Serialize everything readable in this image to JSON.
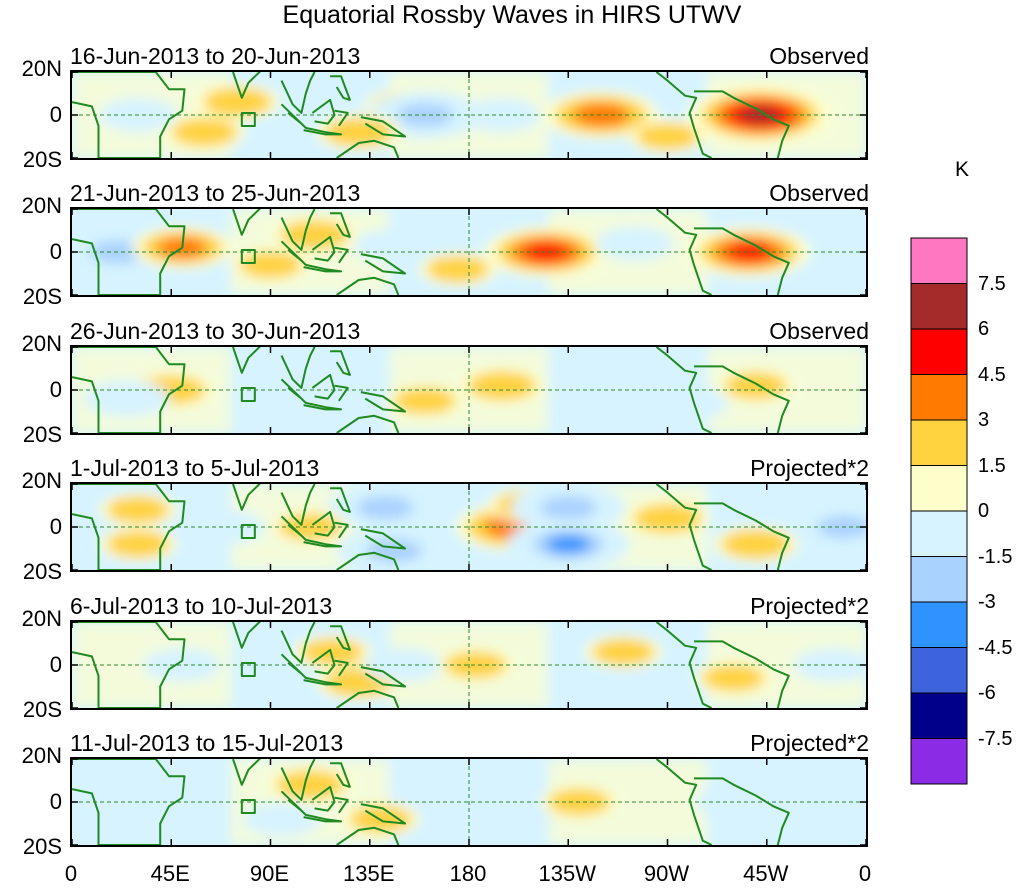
{
  "title": "Equatorial Rossby Waves in HIRS UTWV",
  "lat_labels": [
    "20N",
    "0",
    "20S"
  ],
  "lon_labels": [
    "0",
    "45E",
    "90E",
    "135E",
    "180",
    "135W",
    "90W",
    "45W",
    "0"
  ],
  "panels": [
    {
      "date_range": "16-Jun-2013 to 20-Jun-2013",
      "type": "Observed",
      "blobs": [
        {
          "lon": 75,
          "lat": 6,
          "val": 2
        },
        {
          "lon": 60,
          "lat": -8,
          "val": 1.8
        },
        {
          "lon": 150,
          "lat": 4,
          "val": 1.5
        },
        {
          "lon": 160,
          "lat": 0,
          "val": -4
        },
        {
          "lon": 240,
          "lat": 0,
          "val": 4
        },
        {
          "lon": 312,
          "lat": 0,
          "val": 6
        },
        {
          "lon": 130,
          "lat": -8,
          "val": 2
        },
        {
          "lon": 30,
          "lat": 0,
          "val": -1.5
        },
        {
          "lon": 195,
          "lat": 0,
          "val": -1.5
        },
        {
          "lon": 270,
          "lat": -10,
          "val": 1.5
        }
      ]
    },
    {
      "date_range": "21-Jun-2013 to 25-Jun-2013",
      "type": "Observed",
      "blobs": [
        {
          "lon": 21,
          "lat": 0,
          "val": -4
        },
        {
          "lon": 50,
          "lat": 2,
          "val": 3
        },
        {
          "lon": 110,
          "lat": 8,
          "val": 2
        },
        {
          "lon": 215,
          "lat": 0,
          "val": 4.5
        },
        {
          "lon": 307,
          "lat": 0,
          "val": 4.5
        },
        {
          "lon": 145,
          "lat": 3,
          "val": -1.5
        },
        {
          "lon": 255,
          "lat": 4,
          "val": -1.5
        },
        {
          "lon": 175,
          "lat": -8,
          "val": 1.5
        },
        {
          "lon": 90,
          "lat": -6,
          "val": 1.5
        }
      ]
    },
    {
      "date_range": "26-Jun-2013 to 30-Jun-2013",
      "type": "Observed",
      "blobs": [
        {
          "lon": 45,
          "lat": 0,
          "val": 2
        },
        {
          "lon": 25,
          "lat": -4,
          "val": -2
        },
        {
          "lon": 120,
          "lat": 6,
          "val": -1.5
        },
        {
          "lon": 195,
          "lat": 2,
          "val": 2
        },
        {
          "lon": 237,
          "lat": 0,
          "val": -2
        },
        {
          "lon": 310,
          "lat": 2,
          "val": 1.5
        },
        {
          "lon": 160,
          "lat": -5,
          "val": 1.5
        },
        {
          "lon": 280,
          "lat": -6,
          "val": -1.5
        }
      ]
    },
    {
      "date_range": "1-Jul-2013 to 5-Jul-2013",
      "type": "Projected*2",
      "blobs": [
        {
          "lon": 142,
          "lat": 9,
          "val": -4
        },
        {
          "lon": 146,
          "lat": -11,
          "val": -4
        },
        {
          "lon": 200,
          "lat": 0,
          "val": 4
        },
        {
          "lon": 208,
          "lat": 10,
          "val": 2
        },
        {
          "lon": 225,
          "lat": 9,
          "val": -4
        },
        {
          "lon": 225,
          "lat": -8,
          "val": -4.5
        },
        {
          "lon": 270,
          "lat": 4,
          "val": 2
        },
        {
          "lon": 350,
          "lat": 0,
          "val": -3.5
        },
        {
          "lon": 30,
          "lat": 8,
          "val": 1.5
        },
        {
          "lon": 30,
          "lat": -8,
          "val": 1.5
        },
        {
          "lon": 70,
          "lat": 0,
          "val": -1.5
        },
        {
          "lon": 310,
          "lat": -8,
          "val": 2
        },
        {
          "lon": 108,
          "lat": 0,
          "val": 1.5
        }
      ]
    },
    {
      "date_range": "6-Jul-2013 to 10-Jul-2013",
      "type": "Projected*2",
      "blobs": [
        {
          "lon": 118,
          "lat": 6,
          "val": 1.5
        },
        {
          "lon": 130,
          "lat": -8,
          "val": 2
        },
        {
          "lon": 183,
          "lat": 0,
          "val": 1.5
        },
        {
          "lon": 150,
          "lat": 0,
          "val": -1.5
        },
        {
          "lon": 250,
          "lat": 6,
          "val": 1.5
        },
        {
          "lon": 345,
          "lat": 0,
          "val": -1.5
        },
        {
          "lon": 50,
          "lat": 0,
          "val": -1.5
        },
        {
          "lon": 300,
          "lat": -6,
          "val": 1.5
        }
      ]
    },
    {
      "date_range": "11-Jul-2013 to 15-Jul-2013",
      "type": "Projected*2",
      "blobs": [
        {
          "lon": 108,
          "lat": 8,
          "val": 2
        },
        {
          "lon": 140,
          "lat": -8,
          "val": 1.5
        },
        {
          "lon": 95,
          "lat": -8,
          "val": -1.5
        },
        {
          "lon": 165,
          "lat": 4,
          "val": -1.5
        },
        {
          "lon": 230,
          "lat": 0,
          "val": 1.5
        },
        {
          "lon": 300,
          "lat": 0,
          "val": -1.5
        },
        {
          "lon": 40,
          "lat": 0,
          "val": -1.5
        },
        {
          "lon": 200,
          "lat": -8,
          "val": -1.5
        }
      ]
    }
  ],
  "colorbar": {
    "unit": "K",
    "ticks": [
      "7.5",
      "6",
      "4.5",
      "3",
      "1.5",
      "0",
      "-1.5",
      "-3",
      "-4.5",
      "-6",
      "-7.5"
    ],
    "colors": [
      "#ff77c0",
      "#a52a2a",
      "#ff0000",
      "#ff7a00",
      "#ffd23f",
      "#ffffcc",
      "#d6f3ff",
      "#a9d2ff",
      "#2e93ff",
      "#3d63dd",
      "#00008b",
      "#8b2be6"
    ]
  }
}
